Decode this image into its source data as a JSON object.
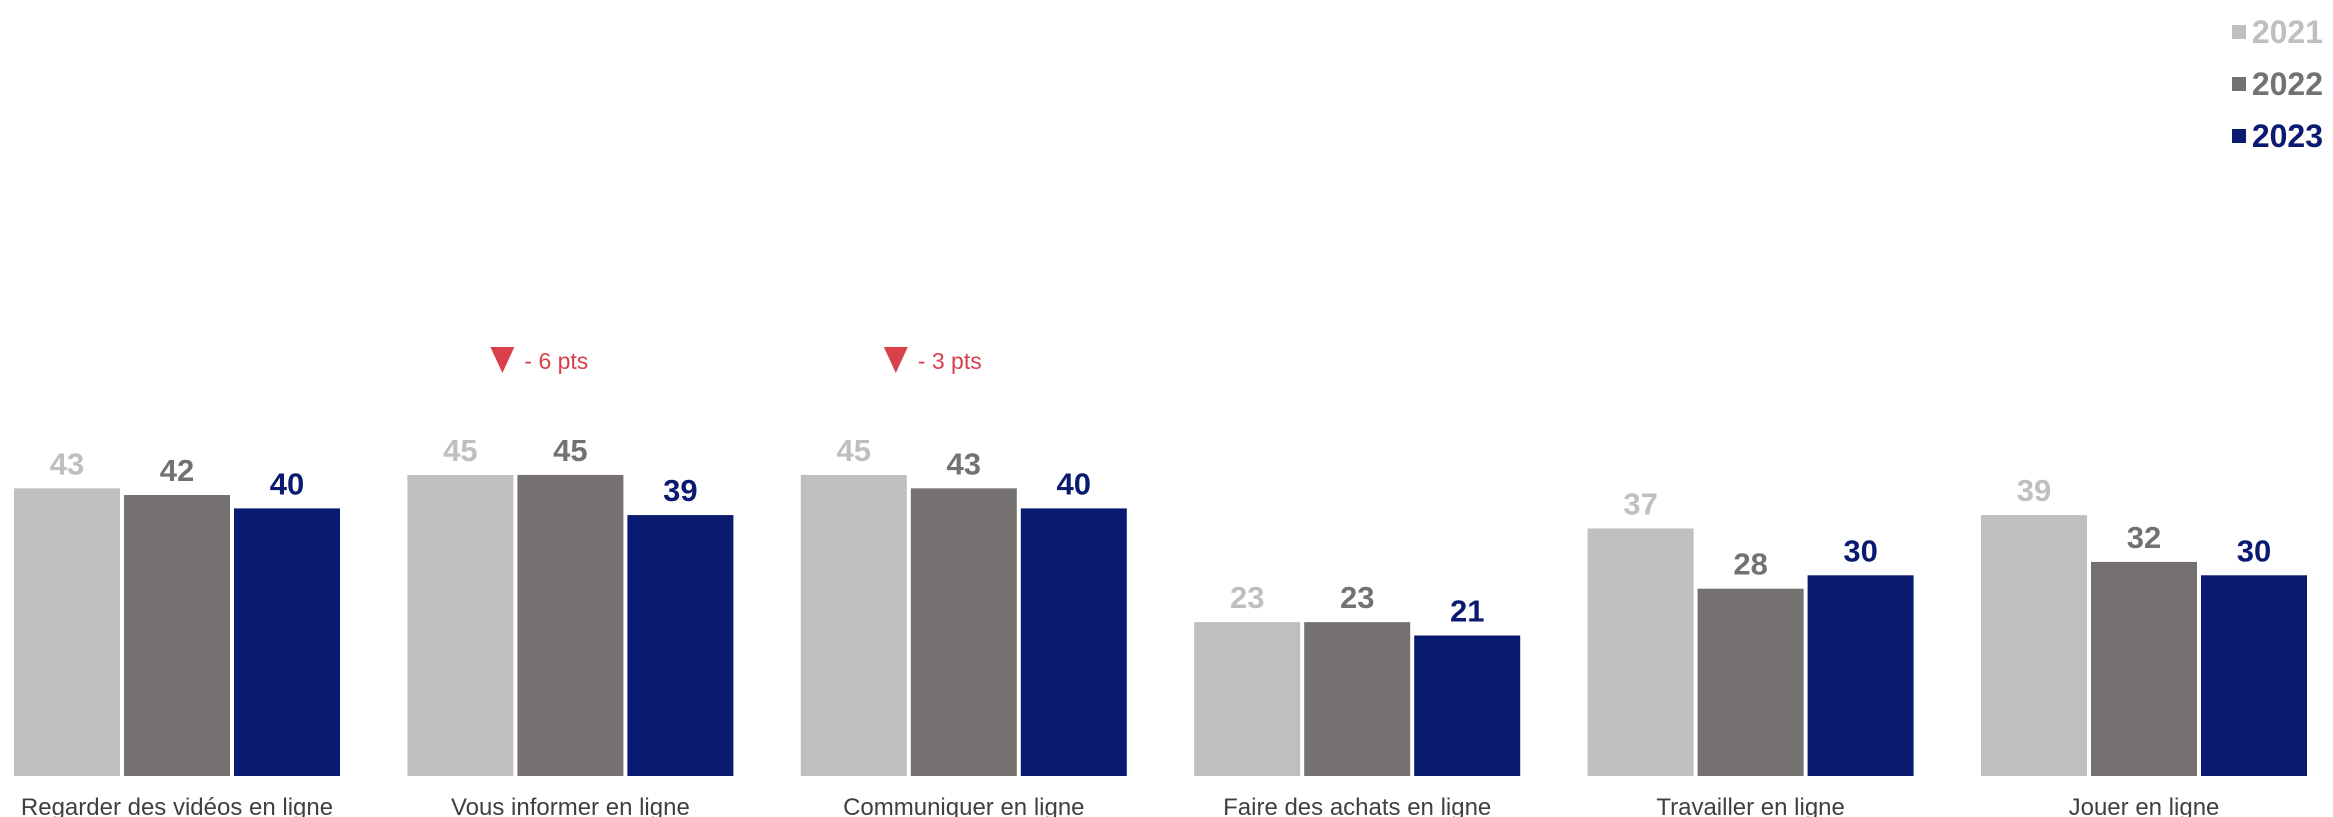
{
  "chart_data": {
    "type": "bar",
    "categories": [
      "Regarder des vidéos en ligne",
      "Vous informer en ligne",
      "Communiquer en ligne",
      "Faire des achats en ligne",
      "Travailler en ligne",
      "Jouer en ligne"
    ],
    "series": [
      {
        "name": "2021",
        "color": "#bfbfbf",
        "values": [
          43,
          45,
          45,
          23,
          37,
          39
        ]
      },
      {
        "name": "2022",
        "color": "#757171",
        "values": [
          42,
          45,
          43,
          23,
          28,
          32
        ]
      },
      {
        "name": "2023",
        "color": "#0a1a70",
        "values": [
          40,
          39,
          40,
          21,
          30,
          30
        ]
      }
    ],
    "annotations": [
      {
        "category": "Vous informer en ligne",
        "text": "- 6 pts",
        "icon": "down-triangle-icon",
        "color": "#d9414a"
      },
      {
        "category": "Communiquer en ligne",
        "text": "- 3 pts",
        "icon": "down-triangle-icon",
        "color": "#d9414a"
      }
    ],
    "legend_position": "top-right",
    "grid": false,
    "ylim": [
      0,
      50
    ]
  }
}
